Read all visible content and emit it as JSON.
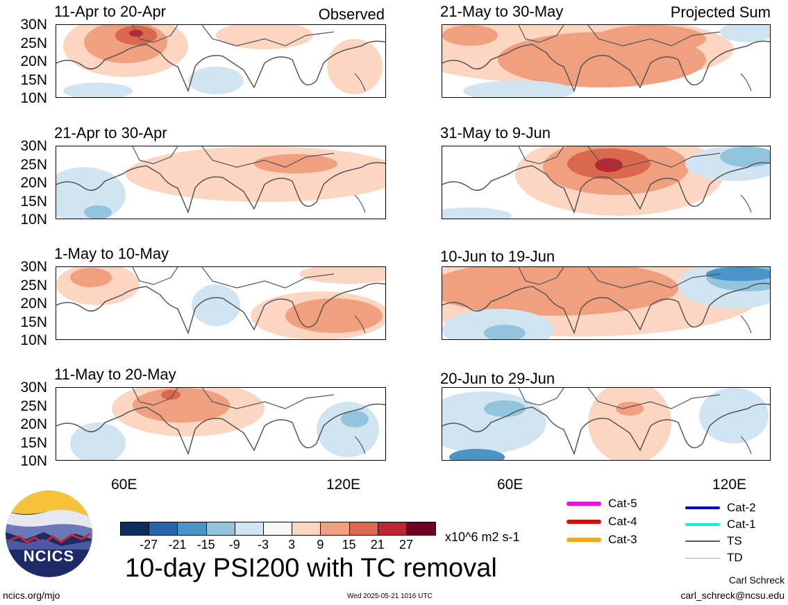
{
  "panels_left": [
    {
      "title": "11-Apr to 20-Apr",
      "tag": "Observed"
    },
    {
      "title": "21-Apr to 30-Apr",
      "tag": ""
    },
    {
      "title": "1-May to 10-May",
      "tag": ""
    },
    {
      "title": "11-May to 20-May",
      "tag": ""
    }
  ],
  "panels_right": [
    {
      "title": "21-May to 30-May",
      "tag": "Projected Sum"
    },
    {
      "title": "31-May to 9-Jun",
      "tag": ""
    },
    {
      "title": "10-Jun to 19-Jun",
      "tag": ""
    },
    {
      "title": "20-Jun to 29-Jun",
      "tag": ""
    }
  ],
  "lat_labels": [
    "30N",
    "25N",
    "20N",
    "15N",
    "10N"
  ],
  "lon_labels": [
    "60E",
    "120E"
  ],
  "colorbar": {
    "colors": [
      "#0a2d5e",
      "#2566ad",
      "#4a94c7",
      "#93c4de",
      "#d0e4f1",
      "#f7f7f7",
      "#fcd6c0",
      "#f0a07e",
      "#d9684e",
      "#b82833",
      "#6e0021"
    ],
    "ticks": [
      "-27",
      "-21",
      "-15",
      "-9",
      "-3",
      "3",
      "9",
      "15",
      "21",
      "27"
    ],
    "units": "x10^6 m2 s-1"
  },
  "title": "10-day PSI200 with TC removal",
  "legend": [
    {
      "label": "Cat-5",
      "color": "#ff00ff"
    },
    {
      "label": "Cat-4",
      "color": "#ee0000"
    },
    {
      "label": "Cat-3",
      "color": "#ffa500"
    },
    {
      "label": "Cat-2",
      "color": "#0000cc"
    },
    {
      "label": "Cat-1",
      "color": "#00eeee"
    },
    {
      "label": "TS",
      "color": "#555555"
    },
    {
      "label": "TD",
      "color": "#aaaaaa"
    }
  ],
  "logo": {
    "text": "NCICS",
    "bg": "#1c2a66"
  },
  "footer": {
    "left": "ncics.org/mjo",
    "center": "Wed 2025-05-21 1016 UTC",
    "author": "Carl Schreck",
    "email": "carl_schreck@ncsu.edu"
  }
}
